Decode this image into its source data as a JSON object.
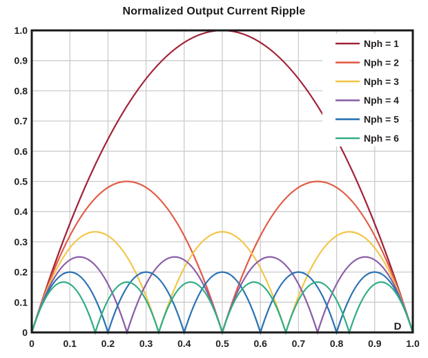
{
  "figure": {
    "background": "#ffffff",
    "text_color": "#231f20",
    "grid_color": "#cbcbcb",
    "border_color": "#1a1a1a"
  },
  "chart_data": {
    "type": "line",
    "title": "Normalized Output Current Ripple",
    "xlabel": "D",
    "ylabel": "",
    "xlim": [
      0,
      1
    ],
    "ylim": [
      0,
      1
    ],
    "grid": true,
    "legend_position": "upper right",
    "x_ticks": {
      "values": [
        0,
        0.1,
        0.2,
        0.3,
        0.4,
        0.5,
        0.6,
        0.7,
        0.8,
        0.9,
        1
      ],
      "labels": [
        "0",
        "0.1",
        "0.2",
        "0.3",
        "0.4",
        "0.5",
        "0.6",
        "0.7",
        "0.8",
        "0.9",
        "1.0"
      ]
    },
    "y_ticks": {
      "values": [
        0,
        0.1,
        0.2,
        0.3,
        0.4,
        0.5,
        0.6,
        0.7,
        0.8,
        0.9,
        1
      ],
      "labels": [
        "0",
        "0.1",
        "0.2",
        "0.3",
        "0.4",
        "0.5",
        "0.6",
        "0.7",
        "0.8",
        "0.9",
        "1.0"
      ]
    },
    "series": [
      {
        "name": "Nph = 1",
        "nph": 1,
        "color": "#a12338",
        "peak": 1.0,
        "zeros": [
          0,
          1
        ],
        "points": [
          [
            0,
            0
          ],
          [
            0.25,
            0.75
          ],
          [
            0.5,
            1.0
          ],
          [
            0.75,
            0.75
          ],
          [
            1,
            0
          ]
        ]
      },
      {
        "name": "Nph = 2",
        "nph": 2,
        "color": "#e25b45",
        "peak": 0.5,
        "zeros": [
          0,
          0.5,
          1
        ],
        "points": [
          [
            0,
            0
          ],
          [
            0.125,
            0.375
          ],
          [
            0.25,
            0.5
          ],
          [
            0.375,
            0.375
          ],
          [
            0.5,
            0
          ],
          [
            0.625,
            0.375
          ],
          [
            0.75,
            0.5
          ],
          [
            0.875,
            0.375
          ],
          [
            1,
            0
          ]
        ]
      },
      {
        "name": "Nph = 3",
        "nph": 3,
        "color": "#f3c64a",
        "peak": 0.3333,
        "zeros": [
          0,
          0.3333,
          0.6667,
          1
        ],
        "points": [
          [
            0,
            0
          ],
          [
            0.0833,
            0.25
          ],
          [
            0.1667,
            0.3333
          ],
          [
            0.25,
            0.25
          ],
          [
            0.3333,
            0
          ],
          [
            0.4167,
            0.25
          ],
          [
            0.5,
            0.3333
          ],
          [
            0.5833,
            0.25
          ],
          [
            0.6667,
            0
          ],
          [
            0.75,
            0.25
          ],
          [
            0.8333,
            0.3333
          ],
          [
            0.9167,
            0.25
          ],
          [
            1,
            0
          ]
        ]
      },
      {
        "name": "Nph = 4",
        "nph": 4,
        "color": "#8a5fa8",
        "peak": 0.25,
        "zeros": [
          0,
          0.25,
          0.5,
          0.75,
          1
        ],
        "points": [
          [
            0,
            0
          ],
          [
            0.0625,
            0.1875
          ],
          [
            0.125,
            0.25
          ],
          [
            0.1875,
            0.1875
          ],
          [
            0.25,
            0
          ],
          [
            0.3125,
            0.1875
          ],
          [
            0.375,
            0.25
          ],
          [
            0.4375,
            0.1875
          ],
          [
            0.5,
            0
          ],
          [
            0.5625,
            0.1875
          ],
          [
            0.625,
            0.25
          ],
          [
            0.6875,
            0.1875
          ],
          [
            0.75,
            0
          ],
          [
            0.8125,
            0.1875
          ],
          [
            0.875,
            0.25
          ],
          [
            0.9375,
            0.1875
          ],
          [
            1,
            0
          ]
        ]
      },
      {
        "name": "Nph = 5",
        "nph": 5,
        "color": "#2b73b4",
        "peak": 0.2,
        "zeros": [
          0,
          0.2,
          0.4,
          0.6,
          0.8,
          1
        ],
        "points": [
          [
            0,
            0
          ],
          [
            0.05,
            0.15
          ],
          [
            0.1,
            0.2
          ],
          [
            0.15,
            0.15
          ],
          [
            0.2,
            0
          ],
          [
            0.25,
            0.15
          ],
          [
            0.3,
            0.2
          ],
          [
            0.35,
            0.15
          ],
          [
            0.4,
            0
          ],
          [
            0.45,
            0.15
          ],
          [
            0.5,
            0.2
          ],
          [
            0.55,
            0.15
          ],
          [
            0.6,
            0
          ],
          [
            0.65,
            0.15
          ],
          [
            0.7,
            0.2
          ],
          [
            0.75,
            0.15
          ],
          [
            0.8,
            0
          ],
          [
            0.85,
            0.15
          ],
          [
            0.9,
            0.2
          ],
          [
            0.95,
            0.15
          ],
          [
            1,
            0
          ]
        ]
      },
      {
        "name": "Nph = 6",
        "nph": 6,
        "color": "#32ad85",
        "peak": 0.1667,
        "zeros": [
          0,
          0.1667,
          0.3333,
          0.5,
          0.6667,
          0.8333,
          1
        ],
        "points": [
          [
            0,
            0
          ],
          [
            0.0417,
            0.125
          ],
          [
            0.0833,
            0.1667
          ],
          [
            0.125,
            0.125
          ],
          [
            0.1667,
            0
          ],
          [
            0.2083,
            0.125
          ],
          [
            0.25,
            0.1667
          ],
          [
            0.2917,
            0.125
          ],
          [
            0.3333,
            0
          ],
          [
            0.375,
            0.125
          ],
          [
            0.4167,
            0.1667
          ],
          [
            0.4583,
            0.125
          ],
          [
            0.5,
            0
          ],
          [
            0.5417,
            0.125
          ],
          [
            0.5833,
            0.1667
          ],
          [
            0.625,
            0.125
          ],
          [
            0.6667,
            0
          ],
          [
            0.7083,
            0.125
          ],
          [
            0.75,
            0.1667
          ],
          [
            0.7917,
            0.125
          ],
          [
            0.8333,
            0
          ],
          [
            0.875,
            0.125
          ],
          [
            0.9167,
            0.1667
          ],
          [
            0.9583,
            0.125
          ],
          [
            1,
            0
          ]
        ]
      }
    ]
  }
}
